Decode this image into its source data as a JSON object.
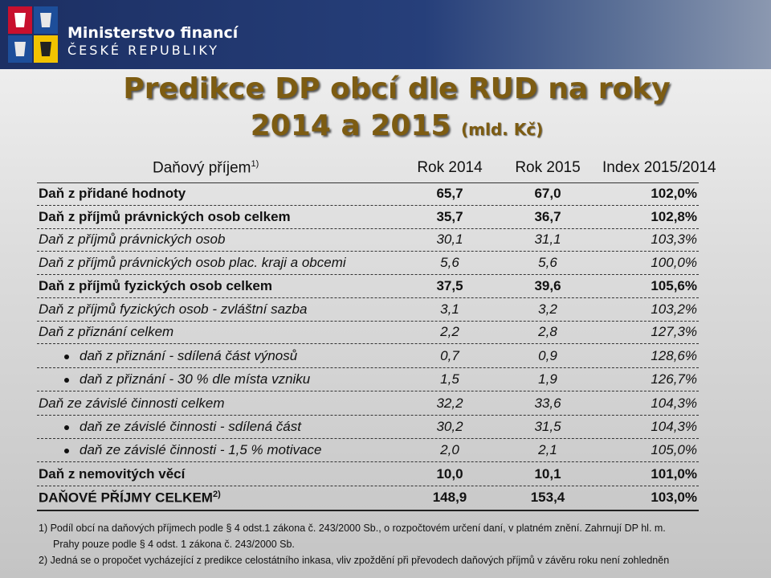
{
  "header": {
    "org_line1": "Ministerstvo financí",
    "org_line2": "ČESKÉ REPUBLIKY"
  },
  "title": {
    "line1": "Predikce DP obcí dle RUD na roky",
    "line2": "2014 a 2015",
    "unit": "(mld. Kč)"
  },
  "table": {
    "columns": [
      "Daňový příjem",
      "Rok 2014",
      "Rok 2015",
      "Index 2015/2014"
    ],
    "column0_note": "1)",
    "rows": [
      [
        "Daň z přidané hodnoty",
        "65,7",
        "67,0",
        "102,0%"
      ],
      [
        "Daň z příjmů právnických osob celkem",
        "35,7",
        "36,7",
        "102,8%"
      ],
      [
        "Daň z příjmů právnických osob",
        "30,1",
        "31,1",
        "103,3%"
      ],
      [
        "Daň z příjmů právnických osob plac. kraji a obcemi",
        "5,6",
        "5,6",
        "100,0%"
      ],
      [
        "Daň z příjmů fyzických osob celkem",
        "37,5",
        "39,6",
        "105,6%"
      ],
      [
        "Daň z příjmů fyzických osob - zvláštní sazba",
        "3,1",
        "3,2",
        "103,2%"
      ],
      [
        "Daň z přiznání celkem",
        "2,2",
        "2,8",
        "127,3%"
      ],
      [
        "daň z přiznání - sdílená část výnosů",
        "0,7",
        "0,9",
        "128,6%"
      ],
      [
        "daň z přiznání - 30 % dle místa vzniku",
        "1,5",
        "1,9",
        "126,7%"
      ],
      [
        "Daň ze závislé činnosti celkem",
        "32,2",
        "33,6",
        "104,3%"
      ],
      [
        "daň ze závislé činnosti - sdílená část",
        "30,2",
        "31,5",
        "104,3%"
      ],
      [
        "daň ze závislé činnosti - 1,5 % motivace",
        "2,0",
        "2,1",
        "105,0%"
      ],
      [
        "Daň z nemovitých věcí",
        "10,0",
        "10,1",
        "101,0%"
      ],
      [
        "DAŇOVÉ PŘÍJMY CELKEM",
        "148,9",
        "153,4",
        "103,0%"
      ]
    ],
    "last_row_note": "2)"
  },
  "footnotes": [
    "1) Podíl obcí na daňových příjmech podle § 4 odst.1 zákona č. 243/2000 Sb., o rozpočtovém určení daní, v platném znění. Zahrnují DP hl. m.",
    "Prahy pouze podle § 4 odst. 1 zákona č. 243/2000 Sb.",
    "2) Jedná se o propočet vycházející z predikce celostátního inkasa, vliv zpoždění při převodech daňových příjmů v závěru roku není zohledněn"
  ]
}
